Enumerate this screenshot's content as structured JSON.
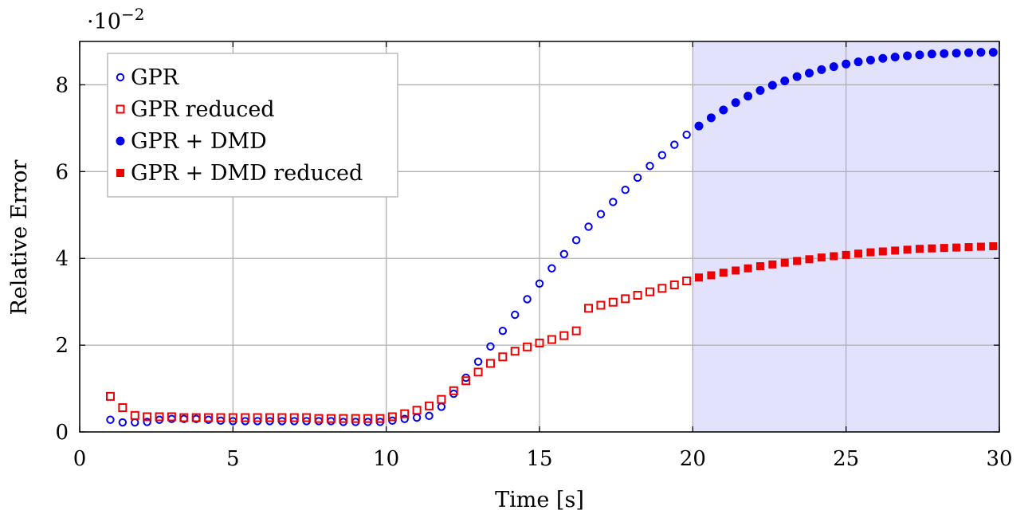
{
  "chart_data": {
    "type": "scatter",
    "xlabel": "Time [s]",
    "ylabel": "Relative Error",
    "scale_label": "·10",
    "scale_exponent": "−2",
    "xlim": [
      0,
      30
    ],
    "ylim": [
      0,
      9
    ],
    "xticks": [
      "0",
      "5",
      "10",
      "15",
      "20",
      "25",
      "30"
    ],
    "yticks": [
      "0",
      "2",
      "4",
      "6",
      "8"
    ],
    "xtick_values": [
      0,
      5,
      10,
      15,
      20,
      25,
      30
    ],
    "ytick_values": [
      0,
      2,
      4,
      6,
      8
    ],
    "grid": true,
    "legend_position": "top-left",
    "shaded_region": {
      "x": [
        20,
        30
      ],
      "color": "#e2e2fd"
    },
    "series": [
      {
        "name": "GPR",
        "marker": "open-circle",
        "color": "#0000ee",
        "x": [
          1.0,
          1.4,
          1.8,
          2.2,
          2.6,
          3.0,
          3.4,
          3.8,
          4.2,
          4.6,
          5.0,
          5.4,
          5.8,
          6.2,
          6.6,
          7.0,
          7.4,
          7.8,
          8.2,
          8.6,
          9.0,
          9.4,
          9.8,
          10.2,
          10.6,
          11.0,
          11.4,
          11.8,
          12.2,
          12.6,
          13.0,
          13.4,
          13.8,
          14.2,
          14.6,
          15.0,
          15.4,
          15.8,
          16.2,
          16.6,
          17.0,
          17.4,
          17.8,
          18.2,
          18.6,
          19.0,
          19.4,
          19.8
        ],
        "y": [
          0.28,
          0.22,
          0.22,
          0.23,
          0.28,
          0.3,
          0.3,
          0.3,
          0.28,
          0.26,
          0.25,
          0.25,
          0.25,
          0.25,
          0.25,
          0.25,
          0.25,
          0.25,
          0.25,
          0.23,
          0.23,
          0.23,
          0.23,
          0.26,
          0.3,
          0.33,
          0.37,
          0.58,
          0.88,
          1.25,
          1.62,
          1.97,
          2.33,
          2.7,
          3.06,
          3.42,
          3.77,
          4.1,
          4.42,
          4.73,
          5.02,
          5.3,
          5.58,
          5.86,
          6.13,
          6.38,
          6.62,
          6.85
        ]
      },
      {
        "name": "GPR reduced",
        "marker": "open-square",
        "color": "#ee0000",
        "x": [
          1.0,
          1.4,
          1.8,
          2.2,
          2.6,
          3.0,
          3.4,
          3.8,
          4.2,
          4.6,
          5.0,
          5.4,
          5.8,
          6.2,
          6.6,
          7.0,
          7.4,
          7.8,
          8.2,
          8.6,
          9.0,
          9.4,
          9.8,
          10.2,
          10.6,
          11.0,
          11.4,
          11.8,
          12.2,
          12.6,
          13.0,
          13.4,
          13.8,
          14.2,
          14.6,
          15.0,
          15.4,
          15.8,
          16.2,
          16.6,
          17.0,
          17.4,
          17.8,
          18.2,
          18.6,
          19.0,
          19.4,
          19.8
        ],
        "y": [
          0.82,
          0.56,
          0.38,
          0.35,
          0.35,
          0.35,
          0.33,
          0.33,
          0.33,
          0.33,
          0.33,
          0.33,
          0.33,
          0.33,
          0.33,
          0.33,
          0.33,
          0.31,
          0.31,
          0.31,
          0.31,
          0.31,
          0.31,
          0.35,
          0.42,
          0.5,
          0.6,
          0.75,
          0.95,
          1.18,
          1.38,
          1.58,
          1.73,
          1.86,
          1.96,
          2.05,
          2.13,
          2.22,
          2.33,
          2.85,
          2.92,
          2.99,
          3.07,
          3.15,
          3.23,
          3.31,
          3.39,
          3.48
        ]
      },
      {
        "name": "GPR + DMD",
        "marker": "filled-circle",
        "color": "#0000ee",
        "x": [
          20.2,
          20.6,
          21.0,
          21.4,
          21.8,
          22.2,
          22.6,
          23.0,
          23.4,
          23.8,
          24.2,
          24.6,
          25.0,
          25.4,
          25.8,
          26.2,
          26.6,
          27.0,
          27.4,
          27.8,
          28.2,
          28.6,
          29.0,
          29.4,
          29.8
        ],
        "y": [
          7.05,
          7.24,
          7.42,
          7.59,
          7.74,
          7.87,
          7.99,
          8.09,
          8.19,
          8.27,
          8.35,
          8.42,
          8.48,
          8.53,
          8.57,
          8.61,
          8.64,
          8.67,
          8.69,
          8.71,
          8.72,
          8.73,
          8.74,
          8.75,
          8.75
        ]
      },
      {
        "name": "GPR + DMD reduced",
        "marker": "filled-square",
        "color": "#ee0000",
        "x": [
          20.2,
          20.6,
          21.0,
          21.4,
          21.8,
          22.2,
          22.6,
          23.0,
          23.4,
          23.8,
          24.2,
          24.6,
          25.0,
          25.4,
          25.8,
          26.2,
          26.6,
          27.0,
          27.4,
          27.8,
          28.2,
          28.6,
          29.0,
          29.4,
          29.8
        ],
        "y": [
          3.56,
          3.61,
          3.67,
          3.72,
          3.77,
          3.82,
          3.86,
          3.9,
          3.94,
          3.98,
          4.02,
          4.05,
          4.08,
          4.11,
          4.14,
          4.16,
          4.18,
          4.2,
          4.22,
          4.23,
          4.24,
          4.25,
          4.26,
          4.27,
          4.28
        ]
      }
    ]
  }
}
